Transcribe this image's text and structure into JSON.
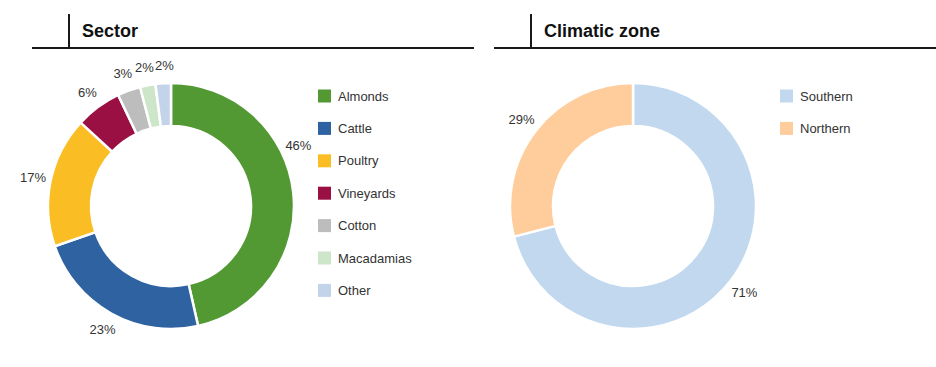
{
  "chart_data": [
    {
      "type": "donut",
      "title": "Sector",
      "categories": [
        "Almonds",
        "Cattle",
        "Poultry",
        "Vineyards",
        "Cotton",
        "Macadamias",
        "Other"
      ],
      "values": [
        46,
        23,
        17,
        6,
        3,
        2,
        2
      ],
      "value_labels": [
        "46%",
        "23%",
        "17%",
        "6%",
        "3%",
        "2%",
        "2%"
      ],
      "colors": [
        "#529934",
        "#2e62a1",
        "#fbbd24",
        "#9a1043",
        "#bdbdbd",
        "#cde5c8",
        "#c3d4ea"
      ],
      "data_labels": true,
      "legend": "right"
    },
    {
      "type": "donut",
      "title": "Climatic zone",
      "categories": [
        "Southern",
        "Northern"
      ],
      "values": [
        71,
        29
      ],
      "value_labels": [
        "71%",
        "29%"
      ],
      "colors": [
        "#c1d8ef",
        "#ffcc9b"
      ],
      "data_labels": true,
      "legend": "right"
    }
  ]
}
